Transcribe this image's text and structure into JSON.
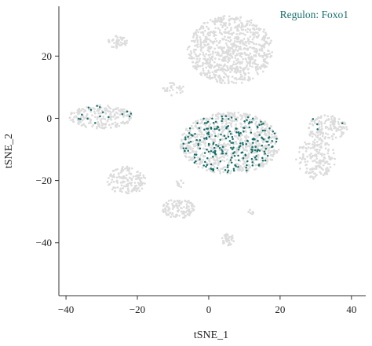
{
  "chart_data": {
    "type": "scatter",
    "title": "",
    "xlabel": "tSNE_1",
    "ylabel": "tSNE_2",
    "xlim": [
      -42,
      44
    ],
    "ylim": [
      -57,
      36
    ],
    "x_ticks": [
      -40,
      -20,
      0,
      20,
      40
    ],
    "y_ticks": [
      -40,
      -20,
      0,
      20
    ],
    "grid": false,
    "legend": "none",
    "annotation": {
      "text": "Regulon: Foxo1",
      "placement": "top-right"
    },
    "colors": {
      "background_cells": "#dcdcdc",
      "highlight_cells": "#17706b",
      "axis": "#333333"
    },
    "clusters": [
      {
        "name": "upper large",
        "cx": 6,
        "cy": 22,
        "rx": 12,
        "ry": 11,
        "n": 820
      },
      {
        "name": "upper small",
        "cx": -25.5,
        "cy": 24.5,
        "rx": 2.8,
        "ry": 2,
        "n": 45
      },
      {
        "name": "mid-upper left",
        "cx": -10,
        "cy": 9.5,
        "rx": 3,
        "ry": 2.2,
        "n": 30
      },
      {
        "name": "left elongated",
        "cx": -30,
        "cy": 0.5,
        "rx": 9,
        "ry": 3.8,
        "n": 210
      },
      {
        "name": "central round",
        "cx": 6,
        "cy": -8,
        "rx": 14,
        "ry": 10,
        "n": 760
      },
      {
        "name": "right upper",
        "cx": 33,
        "cy": -3,
        "rx": 6,
        "ry": 4,
        "n": 150
      },
      {
        "name": "right lower",
        "cx": 30,
        "cy": -13,
        "rx": 5.5,
        "ry": 6.5,
        "n": 170
      },
      {
        "name": "left lower",
        "cx": -23,
        "cy": -20,
        "rx": 5.5,
        "ry": 4.5,
        "n": 150
      },
      {
        "name": "bottom center",
        "cx": -8.5,
        "cy": -29,
        "rx": 4.5,
        "ry": 3.2,
        "n": 120
      },
      {
        "name": "small bottom",
        "cx": 5.5,
        "cy": -39,
        "rx": 1.8,
        "ry": 2.2,
        "n": 35
      },
      {
        "name": "small mid",
        "cx": -8,
        "cy": -21,
        "rx": 1.2,
        "ry": 1.2,
        "n": 10
      },
      {
        "name": "small right",
        "cx": 12,
        "cy": -30,
        "rx": 1,
        "ry": 1,
        "n": 8
      }
    ],
    "highlighted_points": [
      {
        "cluster": "central round",
        "n": 230
      },
      {
        "cluster": "left elongated",
        "n": 16
      },
      {
        "cluster": "right upper",
        "n": 4
      }
    ]
  }
}
